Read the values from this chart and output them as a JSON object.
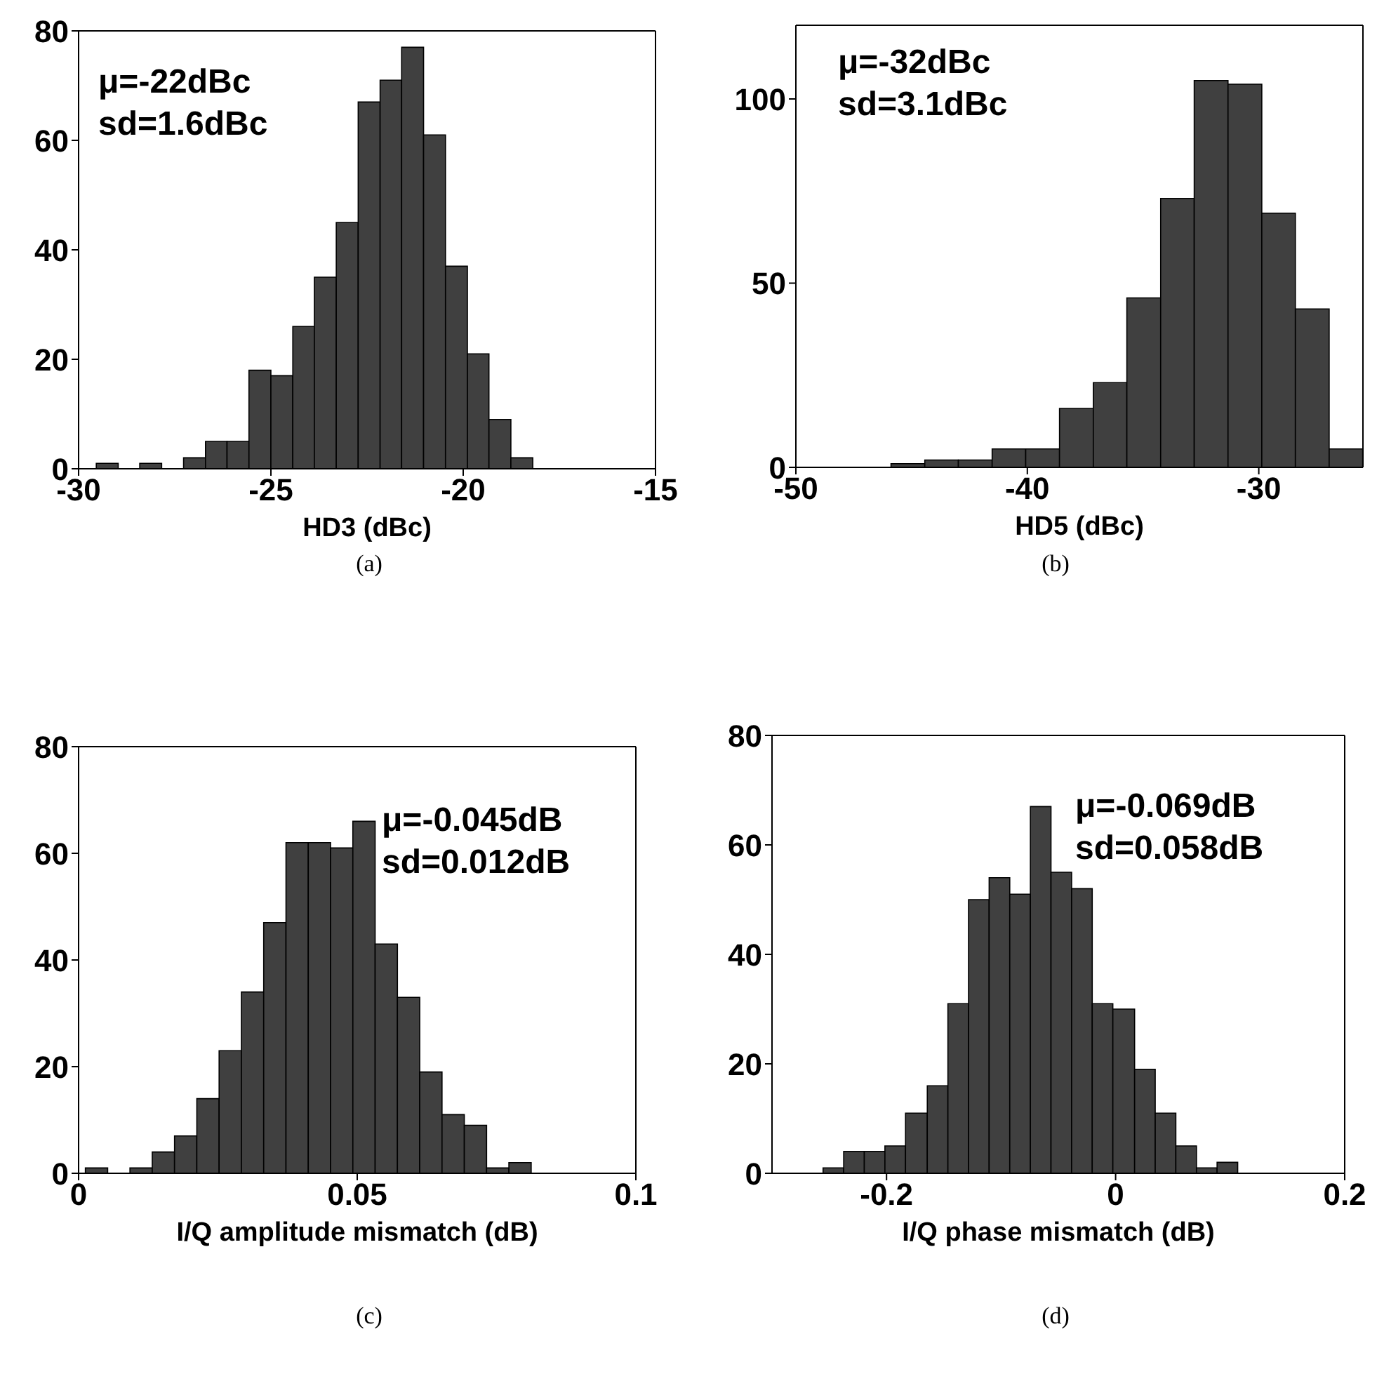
{
  "chart_data": [
    {
      "type": "histogram",
      "xlabel": "HD3 (dBc)",
      "color": "#404040",
      "xlim": [
        -30,
        -15
      ],
      "xticks": [
        -30,
        -25,
        -20,
        -15
      ],
      "ylim": [
        0,
        80
      ],
      "yticks": [
        0,
        20,
        40,
        60,
        80
      ],
      "bins": [
        -29.55,
        -28.98,
        -28.42,
        -27.85,
        -27.28,
        -26.71,
        -26.15,
        -25.58,
        -25.01,
        -24.44,
        -23.88,
        -23.31,
        -22.74,
        -22.17,
        -21.61,
        -21.04,
        -20.47,
        -19.9,
        -19.34,
        -18.77,
        -18.2
      ],
      "values": [
        1,
        0,
        1,
        0,
        2,
        5,
        5,
        18,
        17,
        26,
        35,
        45,
        67,
        71,
        77,
        61,
        37,
        21,
        9,
        2
      ],
      "annotations": [
        "μ=-22dBc",
        "sd=1.6dBc",
        "(a)"
      ]
    },
    {
      "type": "histogram",
      "xlabel": "HD5 (dBc)",
      "color": "#404040",
      "xlim": [
        -50,
        -25.5
      ],
      "xticks": [
        -50,
        -40,
        -30
      ],
      "ylim": [
        0,
        120
      ],
      "yticks": [
        0,
        50,
        100
      ],
      "bins": [
        -45.89,
        -44.43,
        -42.98,
        -41.52,
        -40.07,
        -38.61,
        -37.15,
        -35.7,
        -34.24,
        -32.79,
        -31.33,
        -29.87,
        -28.42,
        -26.96,
        -25.51
      ],
      "values": [
        1,
        2,
        2,
        5,
        5,
        16,
        23,
        46,
        73,
        105,
        104,
        69,
        43,
        5
      ],
      "annotations": [
        "μ=-32dBc",
        "sd=3.1dBc",
        "(b)"
      ]
    },
    {
      "type": "histogram",
      "xlabel": "I/Q amplitude mismatch (dB)",
      "color": "#404040",
      "xlim": [
        0,
        0.1
      ],
      "xticks": [
        0,
        0.05,
        0.1
      ],
      "ylim": [
        0,
        80
      ],
      "yticks": [
        0,
        20,
        40,
        60,
        80
      ],
      "bins": [
        0.0012,
        0.0052,
        0.0092,
        0.0132,
        0.0172,
        0.0212,
        0.0252,
        0.0292,
        0.0332,
        0.0372,
        0.0412,
        0.0452,
        0.0492,
        0.0532,
        0.0572,
        0.0612,
        0.0652,
        0.0692,
        0.0732,
        0.0772,
        0.0812
      ],
      "values": [
        1,
        0,
        1,
        4,
        7,
        14,
        23,
        34,
        47,
        62,
        62,
        61,
        66,
        43,
        33,
        19,
        11,
        9,
        1,
        2
      ],
      "annotations": [
        "μ=-0.045dB",
        "sd=0.012dB",
        "(c)"
      ]
    },
    {
      "type": "histogram",
      "xlabel": "I/Q phase mismatch (dB)",
      "color": "#404040",
      "xlim": [
        -0.3,
        0.2
      ],
      "xticks": [
        -0.2,
        0,
        0.2
      ],
      "ylim": [
        0,
        80
      ],
      "yticks": [
        0,
        20,
        40,
        60,
        80
      ],
      "bins": [
        -0.255,
        -0.237,
        -0.219,
        -0.201,
        -0.183,
        -0.164,
        -0.146,
        -0.128,
        -0.11,
        -0.092,
        -0.074,
        -0.056,
        -0.038,
        -0.02,
        -0.002,
        0.017,
        0.035,
        0.053,
        0.071,
        0.089,
        0.107
      ],
      "values": [
        1,
        4,
        4,
        5,
        11,
        16,
        31,
        50,
        54,
        51,
        67,
        55,
        52,
        31,
        30,
        19,
        11,
        5,
        1,
        2
      ],
      "annotations": [
        "μ=-0.069dB",
        "sd=0.058dB",
        "(d)"
      ]
    }
  ]
}
